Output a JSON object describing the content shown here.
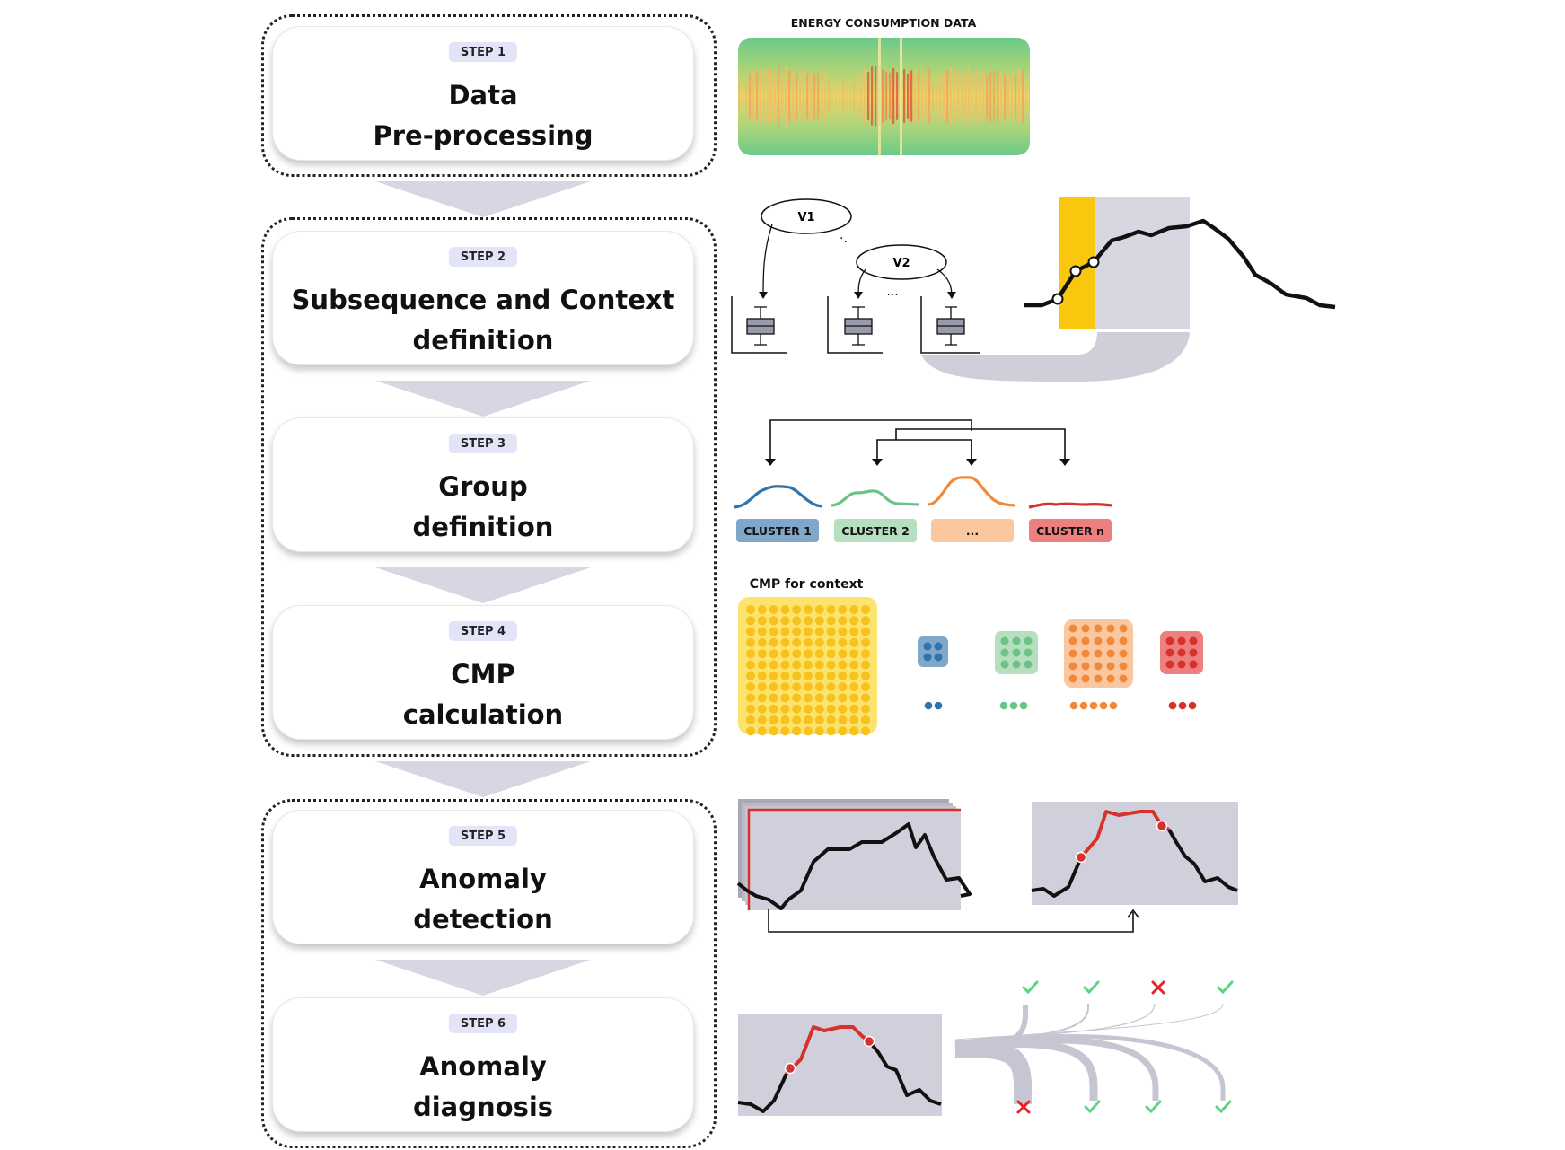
{
  "steps": [
    {
      "badge": "STEP 1",
      "line1": "Data",
      "line2": "Pre-processing"
    },
    {
      "badge": "STEP 2",
      "line1": "Subsequence and Context",
      "line2": "definition"
    },
    {
      "badge": "STEP 3",
      "line1": "Group",
      "line2": "definition"
    },
    {
      "badge": "STEP 4",
      "line1": "CMP",
      "line2": "calculation"
    },
    {
      "badge": "STEP 5",
      "line1": "Anomaly",
      "line2": "detection"
    },
    {
      "badge": "STEP 6",
      "line1": "Anomaly",
      "line2": "diagnosis"
    }
  ],
  "energy": {
    "label": "ENERGY CONSUMPTION DATA"
  },
  "context": {
    "v1": "V1",
    "v2": "V2",
    "dots1": "·.",
    "dots2": "..."
  },
  "clusters": [
    {
      "label": "CLUSTER 1",
      "fill": "#7fa7c9",
      "line": "#2f74ad"
    },
    {
      "label": "CLUSTER 2",
      "fill": "#b5dfbf",
      "line": "#6dc387"
    },
    {
      "label": "...",
      "fill": "#fbc79f",
      "line": "#f08a3a"
    },
    {
      "label": "CLUSTER n",
      "fill": "#ee7f7f",
      "line": "#d6322b"
    }
  ],
  "cmp": {
    "label": "CMP for context"
  },
  "colors": {
    "accent_yellow": "#f9c80e",
    "anomaly_red": "#d6322b",
    "check_green": "#5bd380",
    "cross_red": "#e6232b",
    "panel_gray": "#cfcfd9"
  },
  "diagnosis": {
    "top_marks": [
      "check",
      "check",
      "cross",
      "check"
    ],
    "bottom_marks": [
      "cross",
      "check",
      "check",
      "check"
    ]
  }
}
